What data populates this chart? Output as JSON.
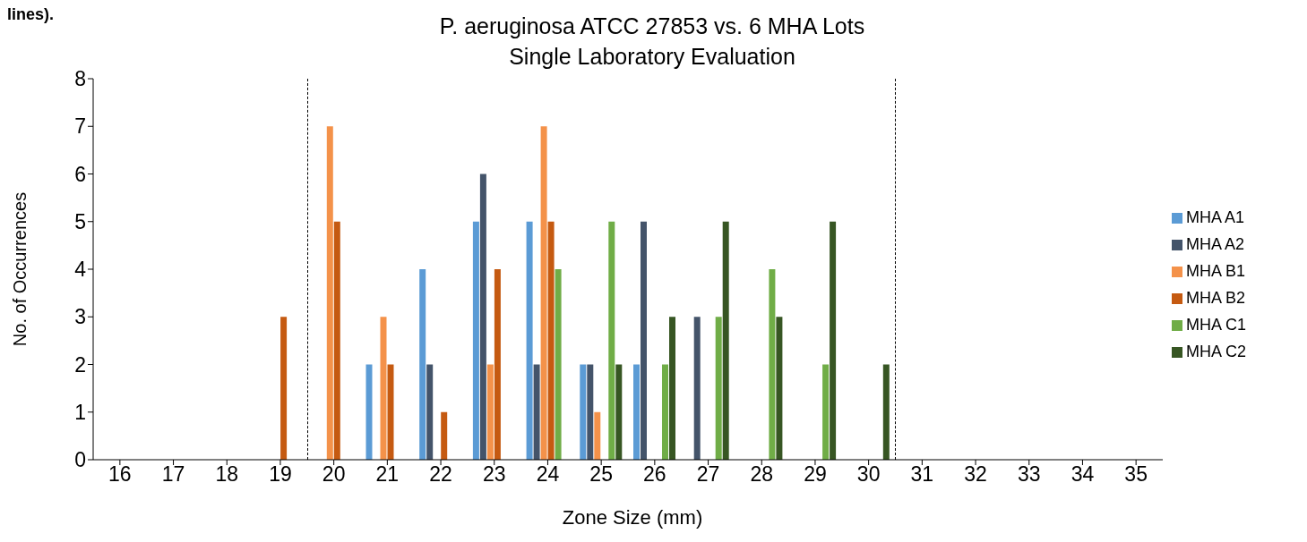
{
  "chart_data": {
    "type": "bar",
    "title": "P. aeruginosa ATCC 27853 vs. 6 MHA Lots",
    "subtitle": "Single Laboratory Evaluation",
    "xlabel": "Zone Size (mm)",
    "ylabel": "No. of Occurrences",
    "annotations": [
      "lines)."
    ],
    "categories": [
      "16",
      "17",
      "18",
      "19",
      "20",
      "21",
      "22",
      "23",
      "24",
      "25",
      "26",
      "27",
      "28",
      "29",
      "30",
      "31",
      "32",
      "33",
      "34",
      "35"
    ],
    "series": [
      {
        "name": "MHA A1",
        "color": "#5b9bd5",
        "values": [
          null,
          null,
          null,
          null,
          null,
          2,
          4,
          5,
          5,
          2,
          2,
          null,
          null,
          null,
          null,
          null,
          null,
          null,
          null,
          null
        ]
      },
      {
        "name": "MHA A2",
        "color": "#44546a",
        "values": [
          null,
          null,
          null,
          null,
          null,
          null,
          2,
          6,
          2,
          2,
          5,
          3,
          null,
          null,
          null,
          null,
          null,
          null,
          null,
          null
        ]
      },
      {
        "name": "MHA B1",
        "color": "#f4924a",
        "values": [
          null,
          null,
          null,
          null,
          7,
          3,
          null,
          2,
          7,
          1,
          null,
          null,
          null,
          null,
          null,
          null,
          null,
          null,
          null,
          null
        ]
      },
      {
        "name": "MHA B2",
        "color": "#c55a11",
        "values": [
          null,
          null,
          null,
          3,
          5,
          2,
          1,
          4,
          5,
          null,
          null,
          null,
          null,
          null,
          null,
          null,
          null,
          null,
          null,
          null
        ]
      },
      {
        "name": "MHA C1",
        "color": "#70ad47",
        "values": [
          null,
          null,
          null,
          null,
          null,
          null,
          null,
          null,
          4,
          5,
          2,
          3,
          4,
          2,
          null,
          null,
          null,
          null,
          null,
          null
        ]
      },
      {
        "name": "MHA C2",
        "color": "#375623",
        "values": [
          null,
          null,
          null,
          null,
          null,
          null,
          null,
          null,
          null,
          2,
          3,
          5,
          3,
          5,
          2,
          null,
          null,
          null,
          null,
          null
        ]
      }
    ],
    "ylim": [
      0,
      8
    ],
    "yticks": [
      0,
      1,
      2,
      3,
      4,
      5,
      6,
      7,
      8
    ],
    "grid": false,
    "legend": "right"
  }
}
